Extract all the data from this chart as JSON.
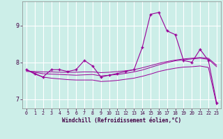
{
  "title": "",
  "xlabel": "Windchill (Refroidissement éolien,°C)",
  "ylabel": "",
  "bg_color": "#cceee8",
  "line_color": "#990099",
  "grid_color": "#aadddd",
  "xlim": [
    -0.5,
    23.5
  ],
  "ylim": [
    6.75,
    9.65
  ],
  "yticks": [
    7,
    8,
    9
  ],
  "xticks": [
    0,
    1,
    2,
    3,
    4,
    5,
    6,
    7,
    8,
    9,
    10,
    11,
    12,
    13,
    14,
    15,
    16,
    17,
    18,
    19,
    20,
    21,
    22,
    23
  ],
  "x": [
    0,
    1,
    2,
    3,
    4,
    5,
    6,
    7,
    8,
    9,
    10,
    11,
    12,
    13,
    14,
    15,
    16,
    17,
    18,
    19,
    20,
    21,
    22,
    23
  ],
  "y_main": [
    7.8,
    7.7,
    7.6,
    7.8,
    7.8,
    7.75,
    7.8,
    8.05,
    7.9,
    7.6,
    7.65,
    7.7,
    7.75,
    7.8,
    8.4,
    9.3,
    9.35,
    8.85,
    8.75,
    8.05,
    8.0,
    8.35,
    8.05,
    6.9
  ],
  "y_reg_up": [
    7.75,
    7.75,
    7.74,
    7.74,
    7.73,
    7.73,
    7.73,
    7.74,
    7.74,
    7.72,
    7.73,
    7.75,
    7.77,
    7.8,
    7.85,
    7.91,
    7.97,
    8.02,
    8.06,
    8.09,
    8.11,
    8.13,
    8.11,
    7.92
  ],
  "y_reg_mid": [
    7.78,
    7.73,
    7.69,
    7.68,
    7.67,
    7.66,
    7.65,
    7.66,
    7.67,
    7.63,
    7.65,
    7.67,
    7.7,
    7.74,
    7.79,
    7.86,
    7.93,
    7.99,
    8.04,
    8.07,
    8.09,
    8.11,
    8.08,
    7.88
  ],
  "y_reg_down": [
    7.8,
    7.68,
    7.6,
    7.57,
    7.55,
    7.53,
    7.52,
    7.52,
    7.52,
    7.48,
    7.49,
    7.51,
    7.54,
    7.57,
    7.62,
    7.68,
    7.75,
    7.8,
    7.84,
    7.87,
    7.88,
    7.9,
    7.86,
    6.85
  ]
}
